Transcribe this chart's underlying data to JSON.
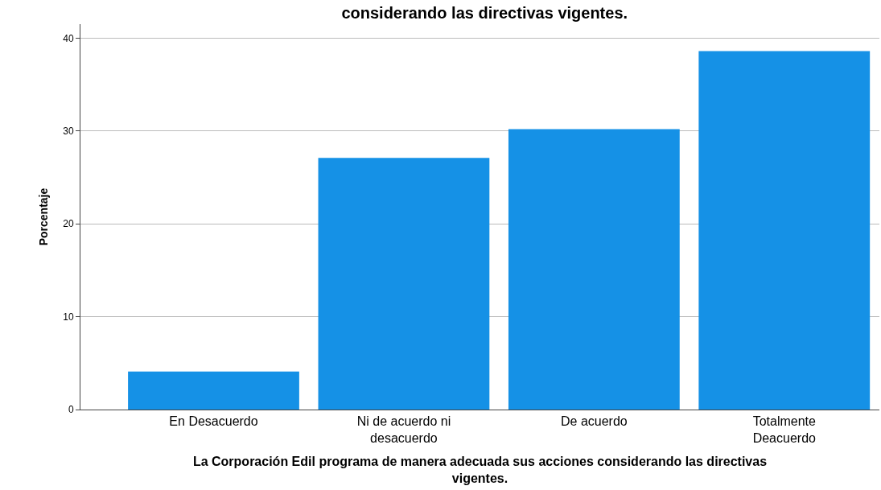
{
  "chart_data": {
    "type": "bar",
    "title": "considerando las directivas vigentes.",
    "categories": [
      "En Desacuerdo",
      "Ni de acuerdo ni desacuerdo",
      "De acuerdo",
      "Totalmente Deacuerdo"
    ],
    "values": [
      4.1,
      27.1,
      30.2,
      38.6
    ],
    "color": "#1591e6",
    "ylabel": "Porcentaje",
    "xlabel": "La Corporación Edil programa de manera adecuada sus acciones considerando las directivas vigentes.",
    "ylim": [
      0,
      41.5
    ],
    "yticks": [
      0,
      10,
      20,
      30,
      40
    ],
    "grid": "y"
  }
}
